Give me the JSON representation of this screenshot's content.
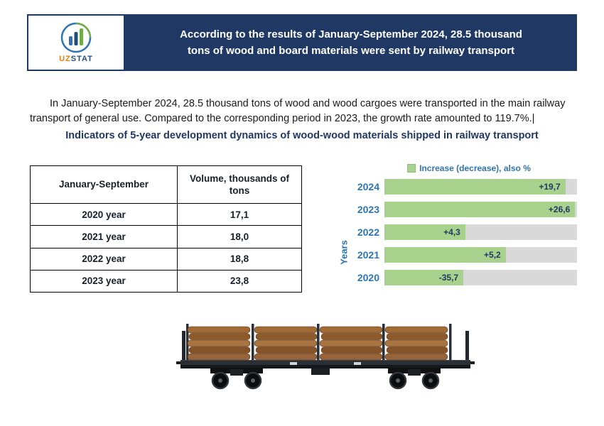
{
  "header": {
    "logo": {
      "uz": "UZ",
      "stat": "STAT"
    },
    "banner_line1": "According to the results of January-September 2024, 28.5 thousand",
    "banner_line2": "tons of wood and board materials were sent by railway transport"
  },
  "intro": {
    "text": "In January-September 2024, 28.5 thousand tons of wood and wood cargoes were transported in the main railway transport of general use. Compared to the corresponding period in 2023, the growth rate amounted to 119.7%."
  },
  "subtitle": "Indicators of 5-year development dynamics of wood-wood materials shipped in railway transport",
  "table": {
    "headers": [
      "January-September",
      "Volume, thousands of tons"
    ],
    "rows": [
      [
        "2020 year",
        "17,1"
      ],
      [
        "2021 year",
        "18,0"
      ],
      [
        "2022 year",
        "18,8"
      ],
      [
        "2023 year",
        "23,8"
      ]
    ]
  },
  "chart_data": {
    "type": "bar",
    "orientation": "horizontal",
    "title": "",
    "legend": "Increase (decrease), also %",
    "ylabel": "Years",
    "categories": [
      "2024",
      "2023",
      "2022",
      "2021",
      "2020"
    ],
    "values": [
      19.7,
      26.6,
      4.3,
      5.2,
      -35.7
    ],
    "labels": [
      "+19,7",
      "+26,6",
      "+4,3",
      "+5,2",
      "-35,7"
    ],
    "bar_fractions": [
      0.94,
      0.99,
      0.42,
      0.63,
      0.41
    ],
    "colors": {
      "bar": "#A9D18E",
      "track": "#D9D9D9",
      "value_label": "#203864",
      "year_label": "#2E74B5"
    }
  }
}
